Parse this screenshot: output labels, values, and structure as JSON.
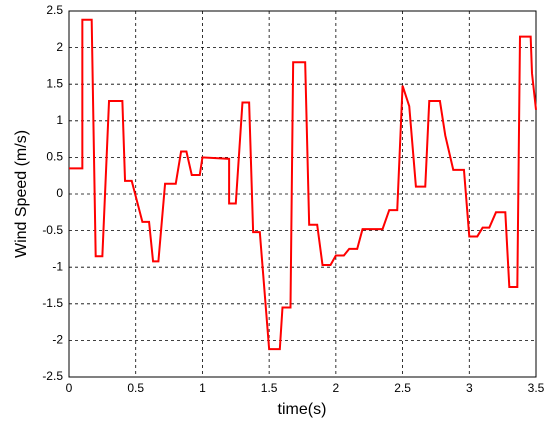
{
  "chart_data": {
    "type": "line",
    "x_label": "time(s)",
    "y_label": "Wind Speed (m/s)",
    "x": [
      0,
      0.1,
      0.1,
      0.17,
      0.2,
      0.25,
      0.3,
      0.4,
      0.42,
      0.47,
      0.55,
      0.6,
      0.63,
      0.67,
      0.72,
      0.8,
      0.84,
      0.88,
      0.92,
      0.98,
      1.0,
      1.2,
      1.2,
      1.25,
      1.3,
      1.35,
      1.38,
      1.43,
      1.5,
      1.58,
      1.6,
      1.66,
      1.68,
      1.77,
      1.8,
      1.86,
      1.9,
      1.96,
      2.0,
      2.06,
      2.1,
      2.16,
      2.2,
      2.35,
      2.4,
      2.46,
      2.5,
      2.55,
      2.6,
      2.67,
      2.7,
      2.78,
      2.82,
      2.88,
      2.96,
      3.0,
      3.06,
      3.1,
      3.15,
      3.2,
      3.27,
      3.3,
      3.36,
      3.38,
      3.46,
      3.47,
      3.5
    ],
    "series": [
      {
        "name": "Wind Speed",
        "color": "#ff0000",
        "values": [
          0.35,
          0.35,
          2.38,
          2.38,
          -0.85,
          -0.85,
          1.27,
          1.27,
          0.18,
          0.18,
          -0.38,
          -0.38,
          -0.92,
          -0.92,
          0.14,
          0.14,
          0.58,
          0.58,
          0.26,
          0.26,
          0.5,
          0.48,
          -0.13,
          -0.13,
          1.25,
          1.25,
          -0.52,
          -0.52,
          -2.12,
          -2.12,
          -1.55,
          -1.55,
          1.8,
          1.8,
          -0.42,
          -0.42,
          -0.97,
          -0.97,
          -0.84,
          -0.84,
          -0.75,
          -0.75,
          -0.48,
          -0.48,
          -0.22,
          -0.22,
          1.48,
          1.2,
          0.1,
          0.1,
          1.27,
          1.27,
          0.8,
          0.33,
          0.33,
          -0.58,
          -0.58,
          -0.46,
          -0.46,
          -0.25,
          -0.25,
          -1.27,
          -1.27,
          2.15,
          2.15,
          1.65,
          1.15
        ]
      }
    ],
    "xlim": [
      0,
      3.5
    ],
    "ylim": [
      -2.5,
      2.5
    ],
    "xticks": [
      0,
      0.5,
      1,
      1.5,
      2,
      2.5,
      3,
      3.5
    ],
    "yticks": [
      -2.5,
      -2,
      -1.5,
      -1,
      -0.5,
      0,
      0.5,
      1,
      1.5,
      2,
      2.5
    ],
    "grid": true
  }
}
